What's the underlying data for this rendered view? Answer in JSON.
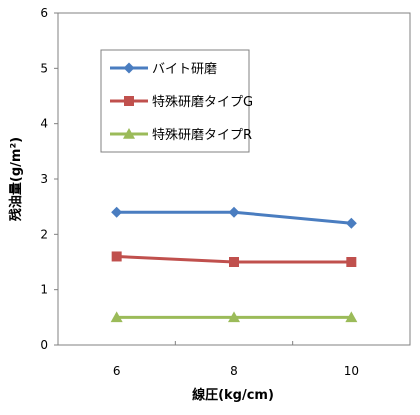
{
  "chart_data": {
    "type": "line",
    "xlabel": "線圧(kg/cm)",
    "ylabel": "残油量(g/m²)",
    "x_ticks": [
      "6",
      "8",
      "10"
    ],
    "y_ticks": [
      "0",
      "1",
      "2",
      "3",
      "4",
      "5",
      "6"
    ],
    "ylim": [
      0,
      6
    ],
    "grid": false,
    "legend_position": "top-left",
    "series": [
      {
        "name": "バイト研磨",
        "x": [
          6,
          8,
          10
        ],
        "values": [
          2.4,
          2.4,
          2.2
        ],
        "color": "#4a7dc0",
        "marker": "diamond"
      },
      {
        "name": "特殊研磨タイプG",
        "x": [
          6,
          8,
          10
        ],
        "values": [
          1.6,
          1.5,
          1.5
        ],
        "color": "#c0504d",
        "marker": "square"
      },
      {
        "name": "特殊研磨タイプR",
        "x": [
          6,
          8,
          10
        ],
        "values": [
          0.5,
          0.5,
          0.5
        ],
        "color": "#9bbb59",
        "marker": "triangle"
      }
    ]
  }
}
